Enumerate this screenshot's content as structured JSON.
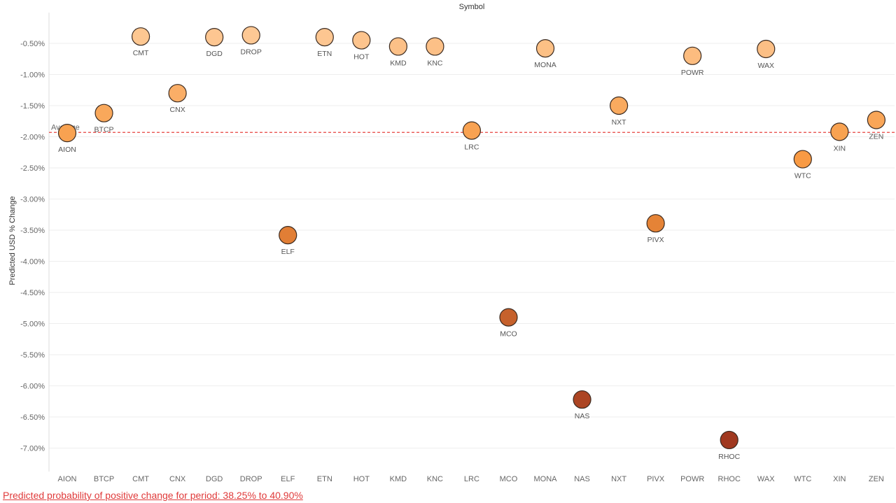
{
  "chart_data": {
    "type": "scatter",
    "title": "Symbol",
    "ylabel": "Predicted USD % Change",
    "xlabel": "",
    "ylim": [
      -7.35,
      -0.15
    ],
    "y_ticks": [
      -0.5,
      -1.0,
      -1.5,
      -2.0,
      -2.5,
      -3.0,
      -3.5,
      -4.0,
      -4.5,
      -5.0,
      -5.5,
      -6.0,
      -6.5,
      -7.0
    ],
    "y_tick_labels": [
      "-0.50%",
      "-1.00%",
      "-1.50%",
      "-2.00%",
      "-2.50%",
      "-3.00%",
      "-3.50%",
      "-4.00%",
      "-4.50%",
      "-5.00%",
      "-5.50%",
      "-6.00%",
      "-6.50%",
      "-7.00%"
    ],
    "grid": true,
    "categories": [
      "AION",
      "BTCP",
      "CMT",
      "CNX",
      "DGD",
      "DROP",
      "ELF",
      "ETN",
      "HOT",
      "KMD",
      "KNC",
      "LRC",
      "MCO",
      "MONA",
      "NAS",
      "NXT",
      "PIVX",
      "POWR",
      "RHOC",
      "WAX",
      "WTC",
      "XIN",
      "ZEN"
    ],
    "values": [
      -1.94,
      -1.62,
      -0.39,
      -1.3,
      -0.4,
      -0.37,
      -3.58,
      -0.4,
      -0.45,
      -0.55,
      -0.55,
      -1.9,
      -4.9,
      -0.58,
      -6.22,
      -1.5,
      -3.39,
      -0.7,
      -6.87,
      -0.59,
      -2.36,
      -1.92,
      -1.73
    ],
    "point_labels": [
      "AION",
      "BTCP",
      "CMT",
      "CNX",
      "DGD",
      "DROP",
      "ELF",
      "ETN",
      "HOT",
      "KMD",
      "KNC",
      "LRC",
      "MCO",
      "MONA",
      "NAS",
      "NXT",
      "PIVX",
      "POWR",
      "RHOC",
      "WAX",
      "WTC",
      "XIN",
      "ZEN"
    ],
    "reference_line": {
      "label": "Average",
      "value": -1.93,
      "color": "#e8423f"
    },
    "color_scale": [
      "#fdc894",
      "#a0381f"
    ],
    "annotation": "Predicted probability of positive change for period:  38.25% to 40.90%"
  }
}
